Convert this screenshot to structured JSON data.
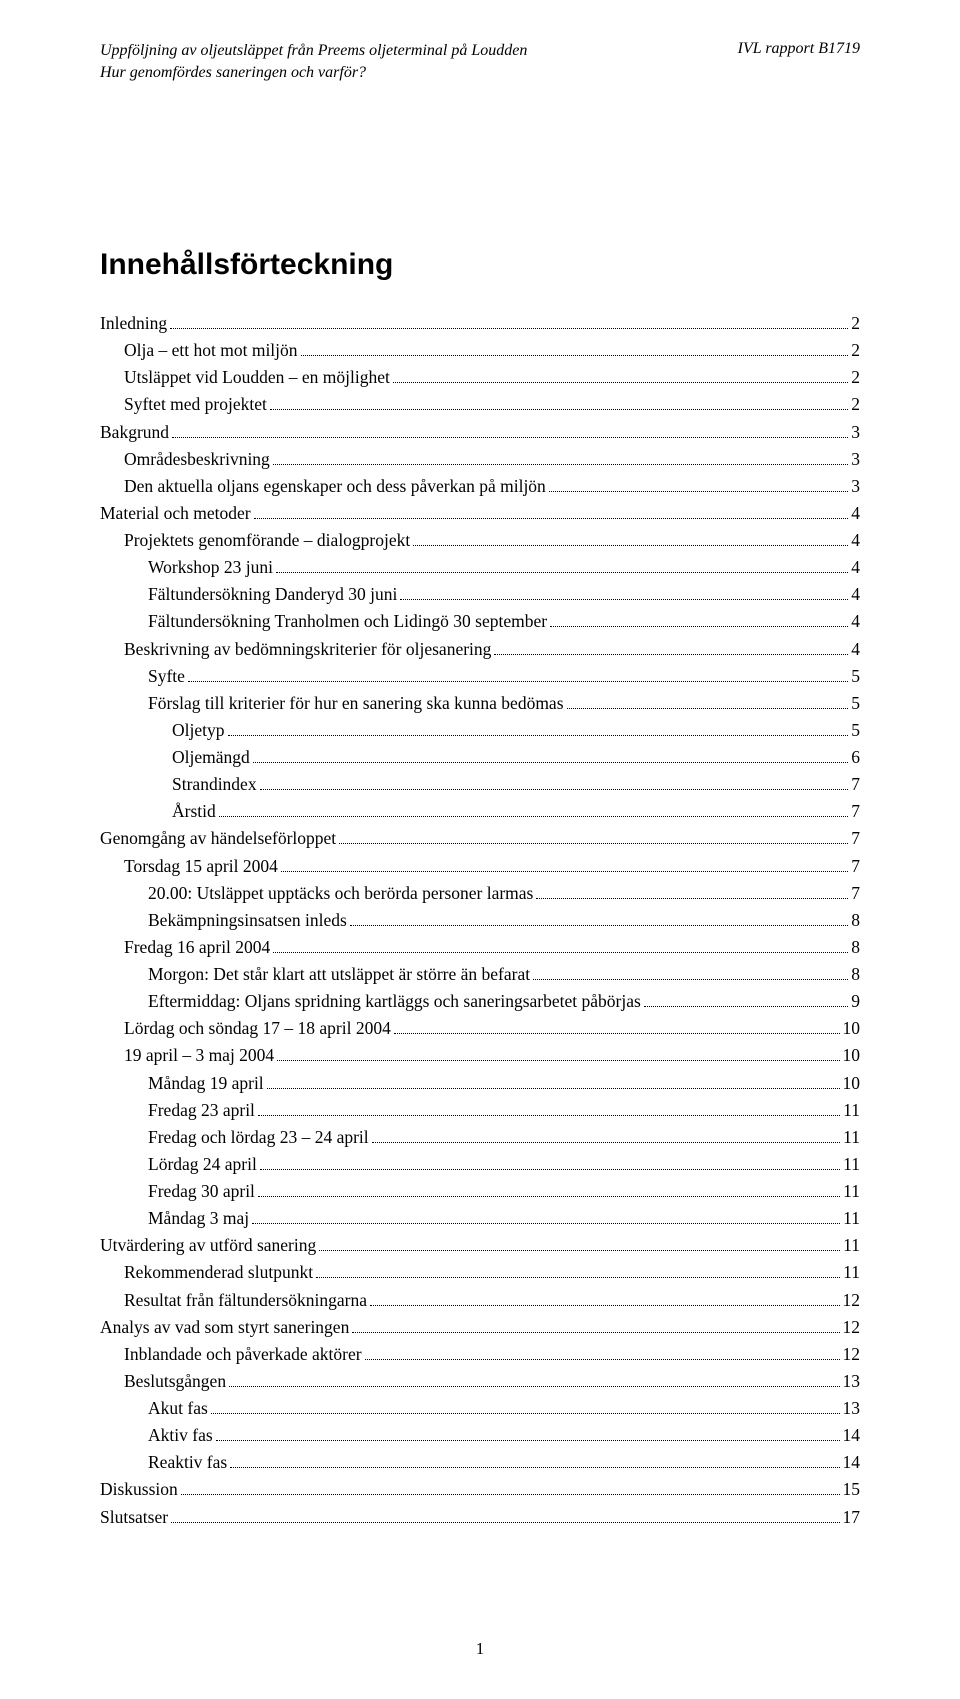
{
  "header": {
    "left_line1": "Uppföljning av oljeutsläppet från Preems oljeterminal på Loudden",
    "left_line2": "Hur genomfördes saneringen och varför?",
    "right": "IVL rapport B1719"
  },
  "title": "Innehållsförteckning",
  "toc": [
    {
      "label": "Inledning",
      "page": "2",
      "indent": 0
    },
    {
      "label": "Olja – ett hot mot miljön",
      "page": "2",
      "indent": 1
    },
    {
      "label": "Utsläppet vid Loudden – en möjlighet",
      "page": "2",
      "indent": 1
    },
    {
      "label": "Syftet med projektet",
      "page": "2",
      "indent": 1
    },
    {
      "label": "Bakgrund",
      "page": "3",
      "indent": 0
    },
    {
      "label": "Områdesbeskrivning",
      "page": "3",
      "indent": 1
    },
    {
      "label": "Den aktuella oljans egenskaper och dess påverkan på miljön",
      "page": "3",
      "indent": 1
    },
    {
      "label": "Material och metoder",
      "page": "4",
      "indent": 0
    },
    {
      "label": "Projektets genomförande – dialogprojekt",
      "page": "4",
      "indent": 1
    },
    {
      "label": "Workshop 23 juni",
      "page": "4",
      "indent": 2
    },
    {
      "label": "Fältundersökning Danderyd 30 juni",
      "page": "4",
      "indent": 2
    },
    {
      "label": "Fältundersökning Tranholmen och Lidingö 30 september",
      "page": "4",
      "indent": 2
    },
    {
      "label": "Beskrivning av bedömningskriterier för oljesanering",
      "page": "4",
      "indent": 1
    },
    {
      "label": "Syfte",
      "page": "5",
      "indent": 2
    },
    {
      "label": "Förslag till kriterier för hur en sanering ska kunna bedömas",
      "page": "5",
      "indent": 2
    },
    {
      "label": "Oljetyp",
      "page": "5",
      "indent": 3
    },
    {
      "label": "Oljemängd",
      "page": "6",
      "indent": 3
    },
    {
      "label": "Strandindex",
      "page": "7",
      "indent": 3
    },
    {
      "label": "Årstid",
      "page": "7",
      "indent": 3
    },
    {
      "label": "Genomgång av händelseförloppet",
      "page": "7",
      "indent": 0
    },
    {
      "label": "Torsdag 15 april 2004",
      "page": "7",
      "indent": 1
    },
    {
      "label": "20.00: Utsläppet upptäcks och berörda personer larmas",
      "page": "7",
      "indent": 2
    },
    {
      "label": "Bekämpningsinsatsen inleds",
      "page": "8",
      "indent": 2
    },
    {
      "label": "Fredag 16 april 2004",
      "page": "8",
      "indent": 1
    },
    {
      "label": "Morgon: Det står klart att utsläppet är större än befarat",
      "page": "8",
      "indent": 2
    },
    {
      "label": "Eftermiddag: Oljans spridning kartläggs och saneringsarbetet påbörjas",
      "page": "9",
      "indent": 2
    },
    {
      "label": "Lördag och söndag 17 – 18 april 2004",
      "page": "10",
      "indent": 1
    },
    {
      "label": "19 april – 3 maj 2004",
      "page": "10",
      "indent": 1
    },
    {
      "label": "Måndag 19 april",
      "page": "10",
      "indent": 2
    },
    {
      "label": "Fredag 23 april",
      "page": "11",
      "indent": 2
    },
    {
      "label": "Fredag och lördag 23 – 24 april",
      "page": "11",
      "indent": 2
    },
    {
      "label": "Lördag 24 april",
      "page": "11",
      "indent": 2
    },
    {
      "label": "Fredag 30 april",
      "page": "11",
      "indent": 2
    },
    {
      "label": "Måndag 3 maj",
      "page": "11",
      "indent": 2
    },
    {
      "label": "Utvärdering av utförd sanering",
      "page": "11",
      "indent": 0
    },
    {
      "label": "Rekommenderad slutpunkt",
      "page": "11",
      "indent": 1
    },
    {
      "label": "Resultat från fältundersökningarna",
      "page": "12",
      "indent": 1
    },
    {
      "label": "Analys av vad som styrt saneringen",
      "page": "12",
      "indent": 0
    },
    {
      "label": "Inblandade och påverkade aktörer",
      "page": "12",
      "indent": 1
    },
    {
      "label": "Beslutsgången",
      "page": "13",
      "indent": 1
    },
    {
      "label": "Akut fas",
      "page": "13",
      "indent": 2
    },
    {
      "label": "Aktiv fas",
      "page": "14",
      "indent": 2
    },
    {
      "label": "Reaktiv fas",
      "page": "14",
      "indent": 2
    },
    {
      "label": "Diskussion",
      "page": "15",
      "indent": 0
    },
    {
      "label": "Slutsatser",
      "page": "17",
      "indent": 0
    }
  ],
  "footer": {
    "page_number": "1"
  }
}
